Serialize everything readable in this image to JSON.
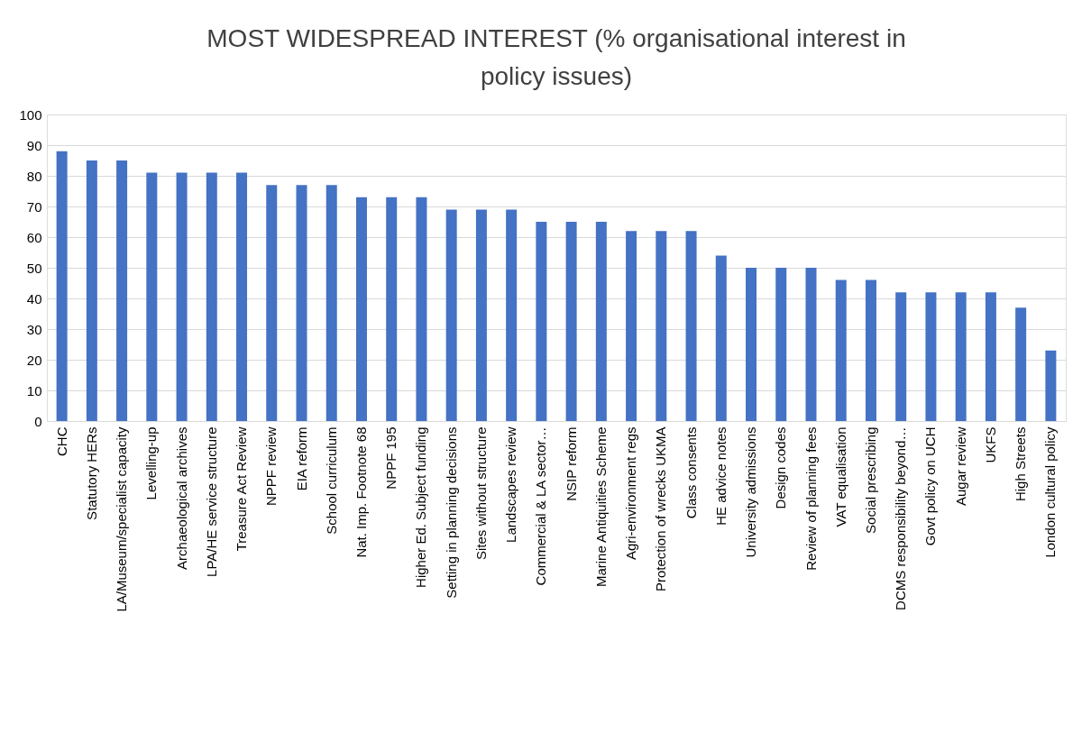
{
  "chart_data": {
    "type": "bar",
    "title": [
      "MOST WIDESPREAD INTEREST (% organisational interest in",
      "policy issues)"
    ],
    "categories": [
      "CHC",
      "Statutory HERs",
      "LA/Museum/specialist capacity",
      "Levelling-up",
      "Archaeological archives",
      "LPA/HE service structure",
      "Treasure Act Review",
      "NPPF review",
      "EIA reform",
      "School curriculum",
      "Nat. Imp. Footnote 68",
      "NPPF 195",
      "Higher Ed. Subject funding",
      "Setting in planning decisions",
      "Sites without structure",
      "Landscapes review",
      "Commercial & LA sector…",
      "NSIP reform",
      "Marine Antiquities Scheme",
      "Agri-environment regs",
      "Protection of wrecks UKMA",
      "Class consents",
      "HE advice notes",
      "University admissions",
      "Design codes",
      "Review of planning fees",
      "VAT equalisation",
      "Social prescribing",
      "DCMS responsibility beyond…",
      "Govt policy on UCH",
      "Augar review",
      "UKFS",
      "High Streets",
      "London cultural policy"
    ],
    "values": [
      88,
      85,
      85,
      81,
      81,
      81,
      81,
      77,
      77,
      77,
      73,
      73,
      73,
      69,
      69,
      69,
      65,
      65,
      65,
      62,
      62,
      62,
      54,
      50,
      50,
      50,
      46,
      46,
      42,
      42,
      42,
      42,
      37,
      23
    ],
    "color": "#4472c4",
    "ylim": [
      0,
      100
    ],
    "yticks": [
      0,
      10,
      20,
      30,
      40,
      50,
      60,
      70,
      80,
      90,
      100
    ],
    "grid": "y"
  }
}
